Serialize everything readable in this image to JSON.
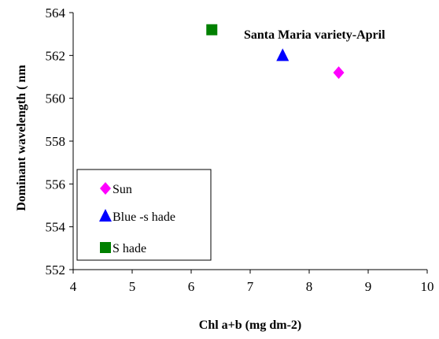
{
  "chart_data": {
    "type": "scatter",
    "xlabel": "Chl a+b (mg dm-2)",
    "ylabel": "Dominant wavelength ( nm",
    "xlim": [
      4,
      10
    ],
    "ylim": [
      552,
      564
    ],
    "xticks": [
      "4",
      "5",
      "6",
      "7",
      "8",
      "9",
      "10"
    ],
    "yticks": [
      "552",
      "554",
      "556",
      "558",
      "560",
      "562",
      "564"
    ],
    "annotation": "Santa Maria variety-April",
    "series": [
      {
        "name": "Sun",
        "marker": "diamond",
        "color": "#ff00ff",
        "points": [
          {
            "x": 8.5,
            "y": 561.2
          }
        ]
      },
      {
        "name": "Blue -s hade",
        "marker": "triangle",
        "color": "#0000ff",
        "points": [
          {
            "x": 7.55,
            "y": 562.0
          }
        ]
      },
      {
        "name": "S hade",
        "marker": "square",
        "color": "#008000",
        "points": [
          {
            "x": 6.35,
            "y": 563.2
          }
        ]
      }
    ],
    "legend_position": "bottom-left",
    "grid": false
  }
}
